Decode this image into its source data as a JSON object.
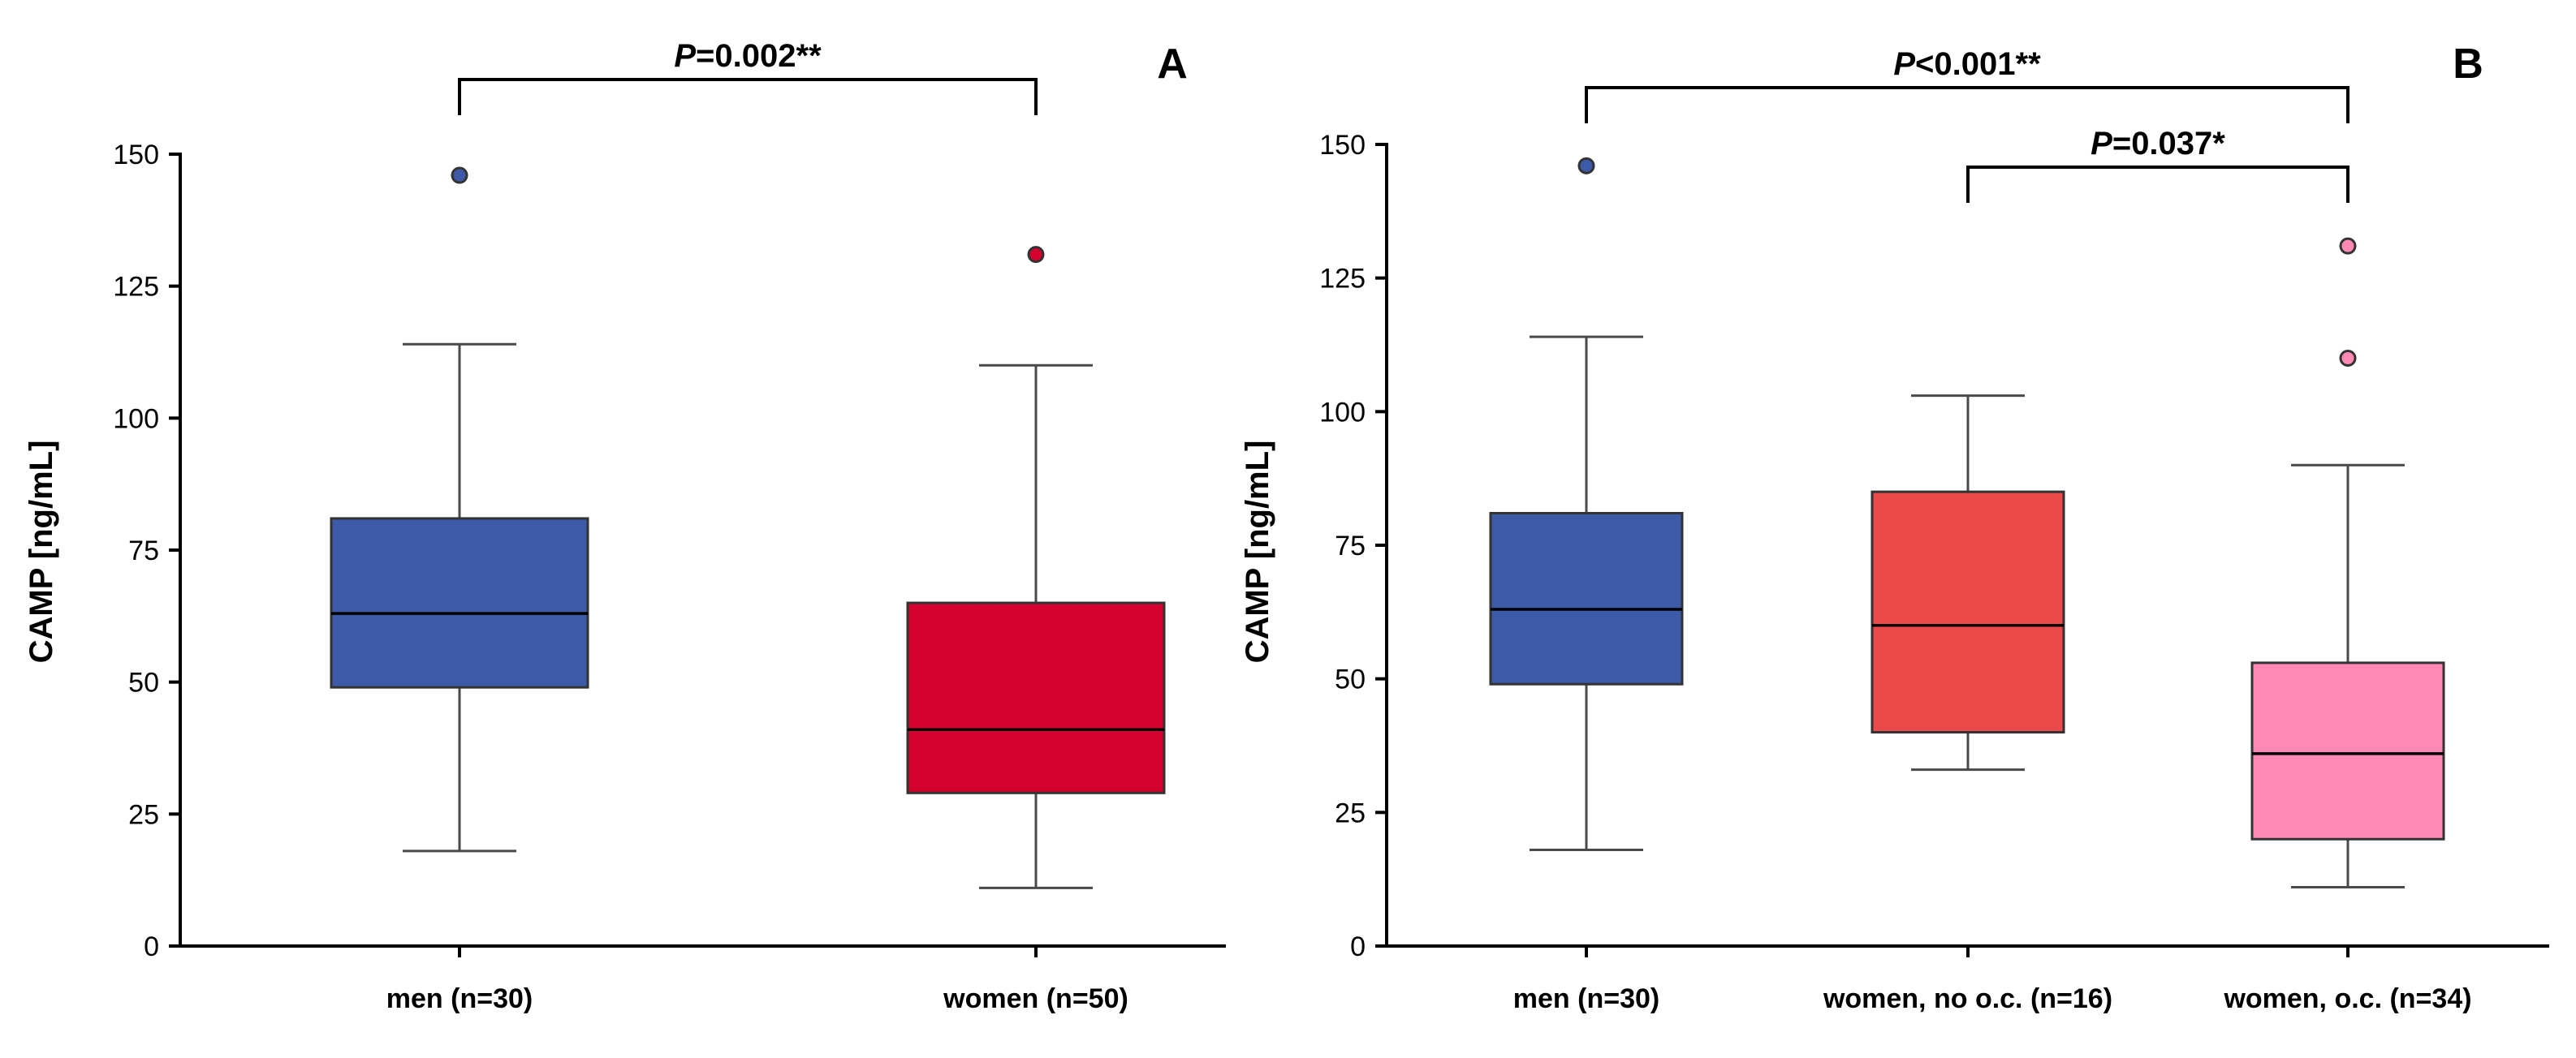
{
  "chart_data": [
    {
      "type": "boxplot",
      "panel_label": "A",
      "ylabel": "CAMP [ng/mL]",
      "ylim": [
        0,
        150
      ],
      "yticks": [
        0,
        25,
        50,
        75,
        100,
        125,
        150
      ],
      "grid": false,
      "series": [
        {
          "category": "men (n=30)",
          "color": "#3d5aa8",
          "whisker_low": 18,
          "q1": 49,
          "median": 63,
          "q3": 81,
          "whisker_high": 114,
          "outliers": [
            146
          ]
        },
        {
          "category": "women (n=50)",
          "color": "#d4002e",
          "whisker_low": 11,
          "q1": 29,
          "median": 41,
          "q3": 65,
          "whisker_high": 110,
          "outliers": [
            131
          ]
        }
      ],
      "significance": [
        {
          "from": 0,
          "to": 1,
          "p_symbol": "P",
          "p_value": "=0.002**"
        }
      ]
    },
    {
      "type": "boxplot",
      "panel_label": "B",
      "ylabel": "CAMP [ng/mL]",
      "ylim": [
        0,
        150
      ],
      "yticks": [
        0,
        25,
        50,
        75,
        100,
        125,
        150
      ],
      "grid": false,
      "series": [
        {
          "category": "men (n=30)",
          "color": "#3d5aa8",
          "whisker_low": 18,
          "q1": 49,
          "median": 63,
          "q3": 81,
          "whisker_high": 114,
          "outliers": [
            146
          ]
        },
        {
          "category": "women, no o.c. (n=16)",
          "color": "#ec4a4a",
          "whisker_low": 33,
          "q1": 40,
          "median": 60,
          "q3": 85,
          "whisker_high": 103,
          "outliers": []
        },
        {
          "category": "women, o.c. (n=34)",
          "color": "#ff88b4",
          "whisker_low": 11,
          "q1": 20,
          "median": 36,
          "q3": 53,
          "whisker_high": 90,
          "outliers": [
            110,
            131
          ]
        }
      ],
      "significance": [
        {
          "from": 0,
          "to": 2,
          "p_symbol": "P",
          "p_value": "<0.001**"
        },
        {
          "from": 1,
          "to": 2,
          "p_symbol": "P",
          "p_value": "=0.037*"
        }
      ]
    }
  ]
}
